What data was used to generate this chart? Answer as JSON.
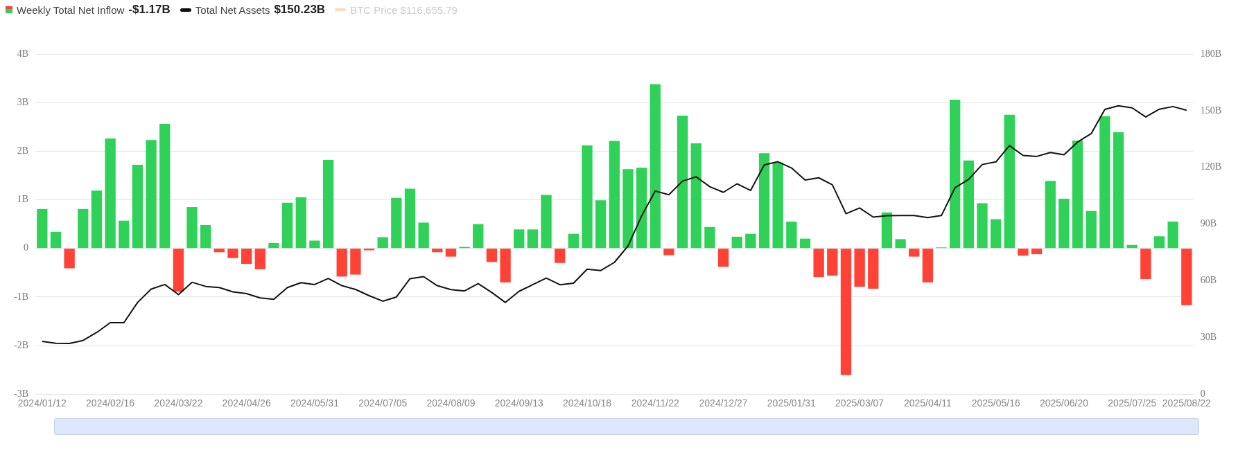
{
  "chart_data": {
    "type": "bar",
    "legend": "top left",
    "grid": "y",
    "categories": [
      "2024/01/12",
      null,
      null,
      null,
      null,
      "2024/02/16",
      null,
      null,
      null,
      null,
      "2024/03/22",
      null,
      null,
      null,
      null,
      "2024/04/26",
      null,
      null,
      null,
      null,
      "2024/05/31",
      null,
      null,
      null,
      null,
      "2024/07/05",
      null,
      null,
      null,
      null,
      "2024/08/09",
      null,
      null,
      null,
      null,
      "2024/09/13",
      null,
      null,
      null,
      null,
      "2024/10/18",
      null,
      null,
      null,
      null,
      "2024/11/22",
      null,
      null,
      null,
      null,
      "2024/12/27",
      null,
      null,
      null,
      null,
      "2025/01/31",
      null,
      null,
      null,
      null,
      "2025/03/07",
      null,
      null,
      null,
      null,
      "2025/04/11",
      null,
      null,
      null,
      null,
      "2025/05/16",
      null,
      null,
      null,
      null,
      "2025/06/20",
      null,
      null,
      null,
      null,
      "2025/07/25",
      null,
      null,
      null,
      "2025/08/22"
    ],
    "ylim": [
      -3,
      4
    ],
    "yticks": [
      {
        "value": -3,
        "label": "-3B"
      },
      {
        "value": -2,
        "label": "-2B"
      },
      {
        "value": -1,
        "label": "-1B"
      },
      0,
      {
        "value": 1,
        "label": "1B"
      },
      {
        "value": 2,
        "label": "2B"
      },
      {
        "value": 3,
        "label": "3B"
      },
      {
        "value": 4,
        "label": "4B"
      }
    ],
    "y2lim": [
      0,
      180
    ],
    "y2ticks": [
      0,
      {
        "value": 30,
        "label": "30B"
      },
      {
        "value": 60,
        "label": "60B"
      },
      {
        "value": 90,
        "label": "90B"
      },
      {
        "value": 120,
        "label": "120B"
      },
      {
        "value": 150,
        "label": "150B"
      },
      {
        "value": 180,
        "label": "180B"
      }
    ],
    "annotations": [
      "-$1.17B",
      "$150.23B",
      "BTC Price $116,655.79"
    ],
    "series": [
      {
        "name": "Weekly Total Net Inflow",
        "colors": [
          "#2fd158",
          "#2fd158",
          "#ff4136",
          "#2fd158",
          "#2fd158",
          "#2fd158",
          "#2fd158",
          "#2fd158",
          "#2fd158",
          "#2fd158",
          "#ff4136",
          "#2fd158",
          "#2fd158",
          "#ff4136",
          "#ff4136",
          "#ff4136",
          "#ff4136",
          "#2fd158",
          "#2fd158",
          "#2fd158",
          "#2fd158",
          "#2fd158",
          "#ff4136",
          "#ff4136",
          "#ff4136",
          "#2fd158",
          "#2fd158",
          "#2fd158",
          "#2fd158",
          "#ff4136",
          "#ff4136",
          "#2fd158",
          "#2fd158",
          "#ff4136",
          "#ff4136",
          "#2fd158",
          "#2fd158",
          "#2fd158",
          "#ff4136",
          "#2fd158",
          "#2fd158",
          "#2fd158",
          "#2fd158",
          "#2fd158",
          "#2fd158",
          "#2fd158",
          "#ff4136",
          "#2fd158",
          "#2fd158",
          "#2fd158",
          "#ff4136",
          "#2fd158",
          "#2fd158",
          "#2fd158",
          "#2fd158",
          "#2fd158",
          "#2fd158",
          "#ff4136",
          "#ff4136",
          "#ff4136",
          "#ff4136",
          "#ff4136",
          "#2fd158",
          "#2fd158",
          "#ff4136",
          "#ff4136",
          "#2fd158",
          "#2fd158",
          "#2fd158",
          "#2fd158",
          "#2fd158",
          "#2fd158",
          "#ff4136",
          "#ff4136",
          "#2fd158",
          "#2fd158",
          "#2fd158",
          "#2fd158",
          "#2fd158",
          "#2fd158",
          "#2fd158",
          "#ff4136",
          "#2fd158",
          "#2fd158",
          "#ff4136"
        ],
        "values": [
          0.81,
          0.34,
          -0.41,
          0.81,
          1.19,
          2.26,
          0.57,
          1.72,
          2.23,
          2.56,
          -0.89,
          0.85,
          0.48,
          -0.08,
          -0.2,
          -0.32,
          -0.43,
          0.11,
          0.94,
          1.05,
          0.16,
          1.82,
          -0.58,
          -0.54,
          -0.04,
          0.23,
          1.04,
          1.23,
          0.53,
          -0.08,
          -0.17,
          0.03,
          0.5,
          -0.28,
          -0.7,
          0.39,
          0.39,
          1.1,
          -0.3,
          0.3,
          2.12,
          0.99,
          2.21,
          1.63,
          1.66,
          3.38,
          -0.14,
          2.73,
          2.16,
          0.44,
          -0.38,
          0.24,
          0.3,
          1.96,
          1.77,
          0.55,
          0.2,
          -0.59,
          -0.56,
          -2.61,
          -0.79,
          -0.83,
          0.74,
          0.19,
          -0.17,
          -0.7,
          0.02,
          3.06,
          1.81,
          0.93,
          0.6,
          2.75,
          -0.15,
          -0.12,
          1.39,
          1.02,
          2.22,
          0.77,
          2.72,
          2.39,
          0.07,
          -0.63,
          0.25,
          0.55,
          -1.17
        ]
      },
      {
        "name": "Total Net Assets",
        "type": "line",
        "axis": "y2",
        "color": "#111111",
        "values": [
          27.9,
          26.9,
          26.8,
          28.4,
          32.6,
          37.8,
          37.8,
          48.5,
          55.6,
          58.0,
          52.7,
          59.2,
          57.0,
          56.4,
          54.1,
          53.2,
          50.9,
          50.2,
          56.4,
          59.0,
          58.0,
          61.2,
          57.4,
          55.4,
          52.1,
          49.2,
          51.4,
          61.1,
          62.2,
          57.4,
          55.3,
          54.6,
          58.5,
          53.8,
          48.5,
          54.4,
          57.9,
          61.4,
          57.9,
          58.7,
          66.1,
          65.4,
          69.7,
          78.4,
          94.3,
          107.5,
          105.5,
          112.7,
          115.0,
          109.8,
          106.8,
          111.3,
          107.8,
          121.3,
          123.0,
          119.7,
          113.3,
          114.5,
          110.8,
          95.5,
          98.5,
          93.7,
          94.4,
          94.5,
          94.5,
          93.4,
          94.5,
          109.2,
          113.6,
          121.5,
          122.9,
          131.5,
          126.3,
          125.8,
          127.9,
          126.7,
          133.4,
          137.9,
          150.7,
          152.6,
          151.5,
          146.7,
          150.8,
          152.2,
          150.23
        ]
      }
    ]
  }
}
